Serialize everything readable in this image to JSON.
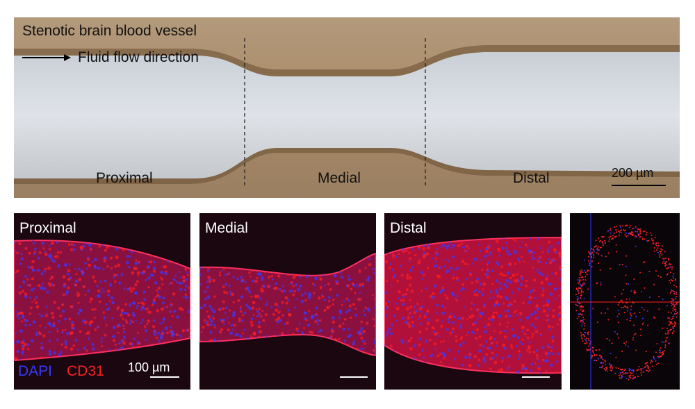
{
  "top_panel": {
    "title": "Stenotic brain blood vessel",
    "flow_label": "Fluid flow direction",
    "regions": [
      "Proximal",
      "Medial",
      "Distal"
    ],
    "scale_bar": "200 µm"
  },
  "bottom_panels": {
    "labels": [
      "Proximal",
      "Medial",
      "Distal"
    ],
    "stain_dapi": "DAPI",
    "stain_cd31": "CD31",
    "scale_bar": "100 µm",
    "colors": {
      "dapi": "#3a3aff",
      "cd31": "#ff2020"
    }
  }
}
